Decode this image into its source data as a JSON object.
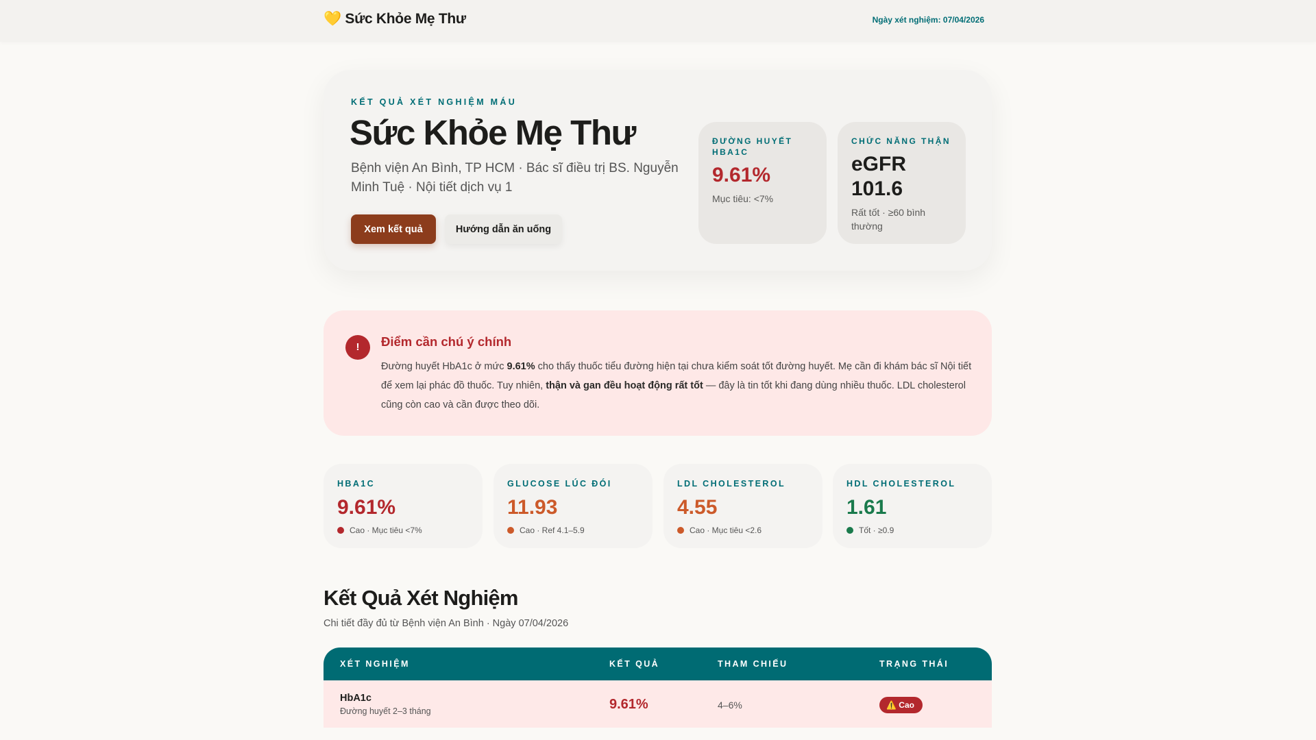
{
  "header": {
    "brand_icon": "yellow-heart-icon",
    "brand": "💛 Sức Khỏe Mẹ Thư",
    "date": "Ngày xét nghiệm: 07/04/2026"
  },
  "hero": {
    "eyebrow": "KẾT QUẢ XÉT NGHIỆM MÁU",
    "title": "Sức Khỏe Mẹ Thư",
    "subtitle": "Bệnh viện An Bình, TP HCM · Bác sĩ điều trị BS. Nguyễn Minh Tuệ · Nội tiết dịch vụ 1",
    "primary_button": "Xem kết quả",
    "secondary_button": "Hướng dẫn ăn uống",
    "stats": [
      {
        "label": "ĐƯỜNG HUYẾT HBA1C",
        "value": "9.61%",
        "note": "Mục tiêu: <7%",
        "color": "#b3282d"
      },
      {
        "label": "CHỨC NĂNG THẬN",
        "value": "eGFR 101.6",
        "note": "Rất tốt · ≥60 bình thường",
        "color": "#1d1d1b"
      }
    ]
  },
  "alert": {
    "icon": "!",
    "title": "Điểm cần chú ý chính",
    "body_1": "Đường huyết HbA1c ở mức ",
    "body_b1": "9.61%",
    "body_2": " cho thấy thuốc tiểu đường hiện tại chưa kiểm soát tốt đường huyết. Mẹ cần đi khám bác sĩ Nội tiết để xem lại phác đồ thuốc. Tuy nhiên, ",
    "body_b2": "thận và gan đều hoạt động rất tốt",
    "body_3": " — đây là tin tốt khi đang dùng nhiều thuốc. LDL cholesterol cũng còn cao và cần được theo dõi."
  },
  "metrics": [
    {
      "label": "HBA1C",
      "value": "9.61%",
      "note": "Cao · Mục tiêu <7%",
      "color": "#b3282d"
    },
    {
      "label": "GLUCOSE LÚC ĐÓI",
      "value": "11.93",
      "note": "Cao · Ref 4.1–5.9",
      "color": "#cc5a2a"
    },
    {
      "label": "LDL CHOLESTEROL",
      "value": "4.55",
      "note": "Cao · Mục tiêu <2.6",
      "color": "#cc5a2a"
    },
    {
      "label": "HDL CHOLESTEROL",
      "value": "1.61",
      "note": "Tốt · ≥0.9",
      "color": "#1a7a4c"
    }
  ],
  "results": {
    "title": "Kết Quả Xét Nghiệm",
    "subtitle": "Chi tiết đầy đủ từ Bệnh viện An Bình · Ngày 07/04/2026",
    "columns": [
      "XÉT NGHIỆM",
      "KẾT QUẢ",
      "THAM CHIẾU",
      "TRẠNG THÁI"
    ],
    "rows": [
      {
        "name": "HbA1c",
        "desc": "Đường huyết 2–3 tháng",
        "result": "9.61%",
        "ref": "4–6%",
        "status": "⚠️ Cao"
      }
    ]
  }
}
